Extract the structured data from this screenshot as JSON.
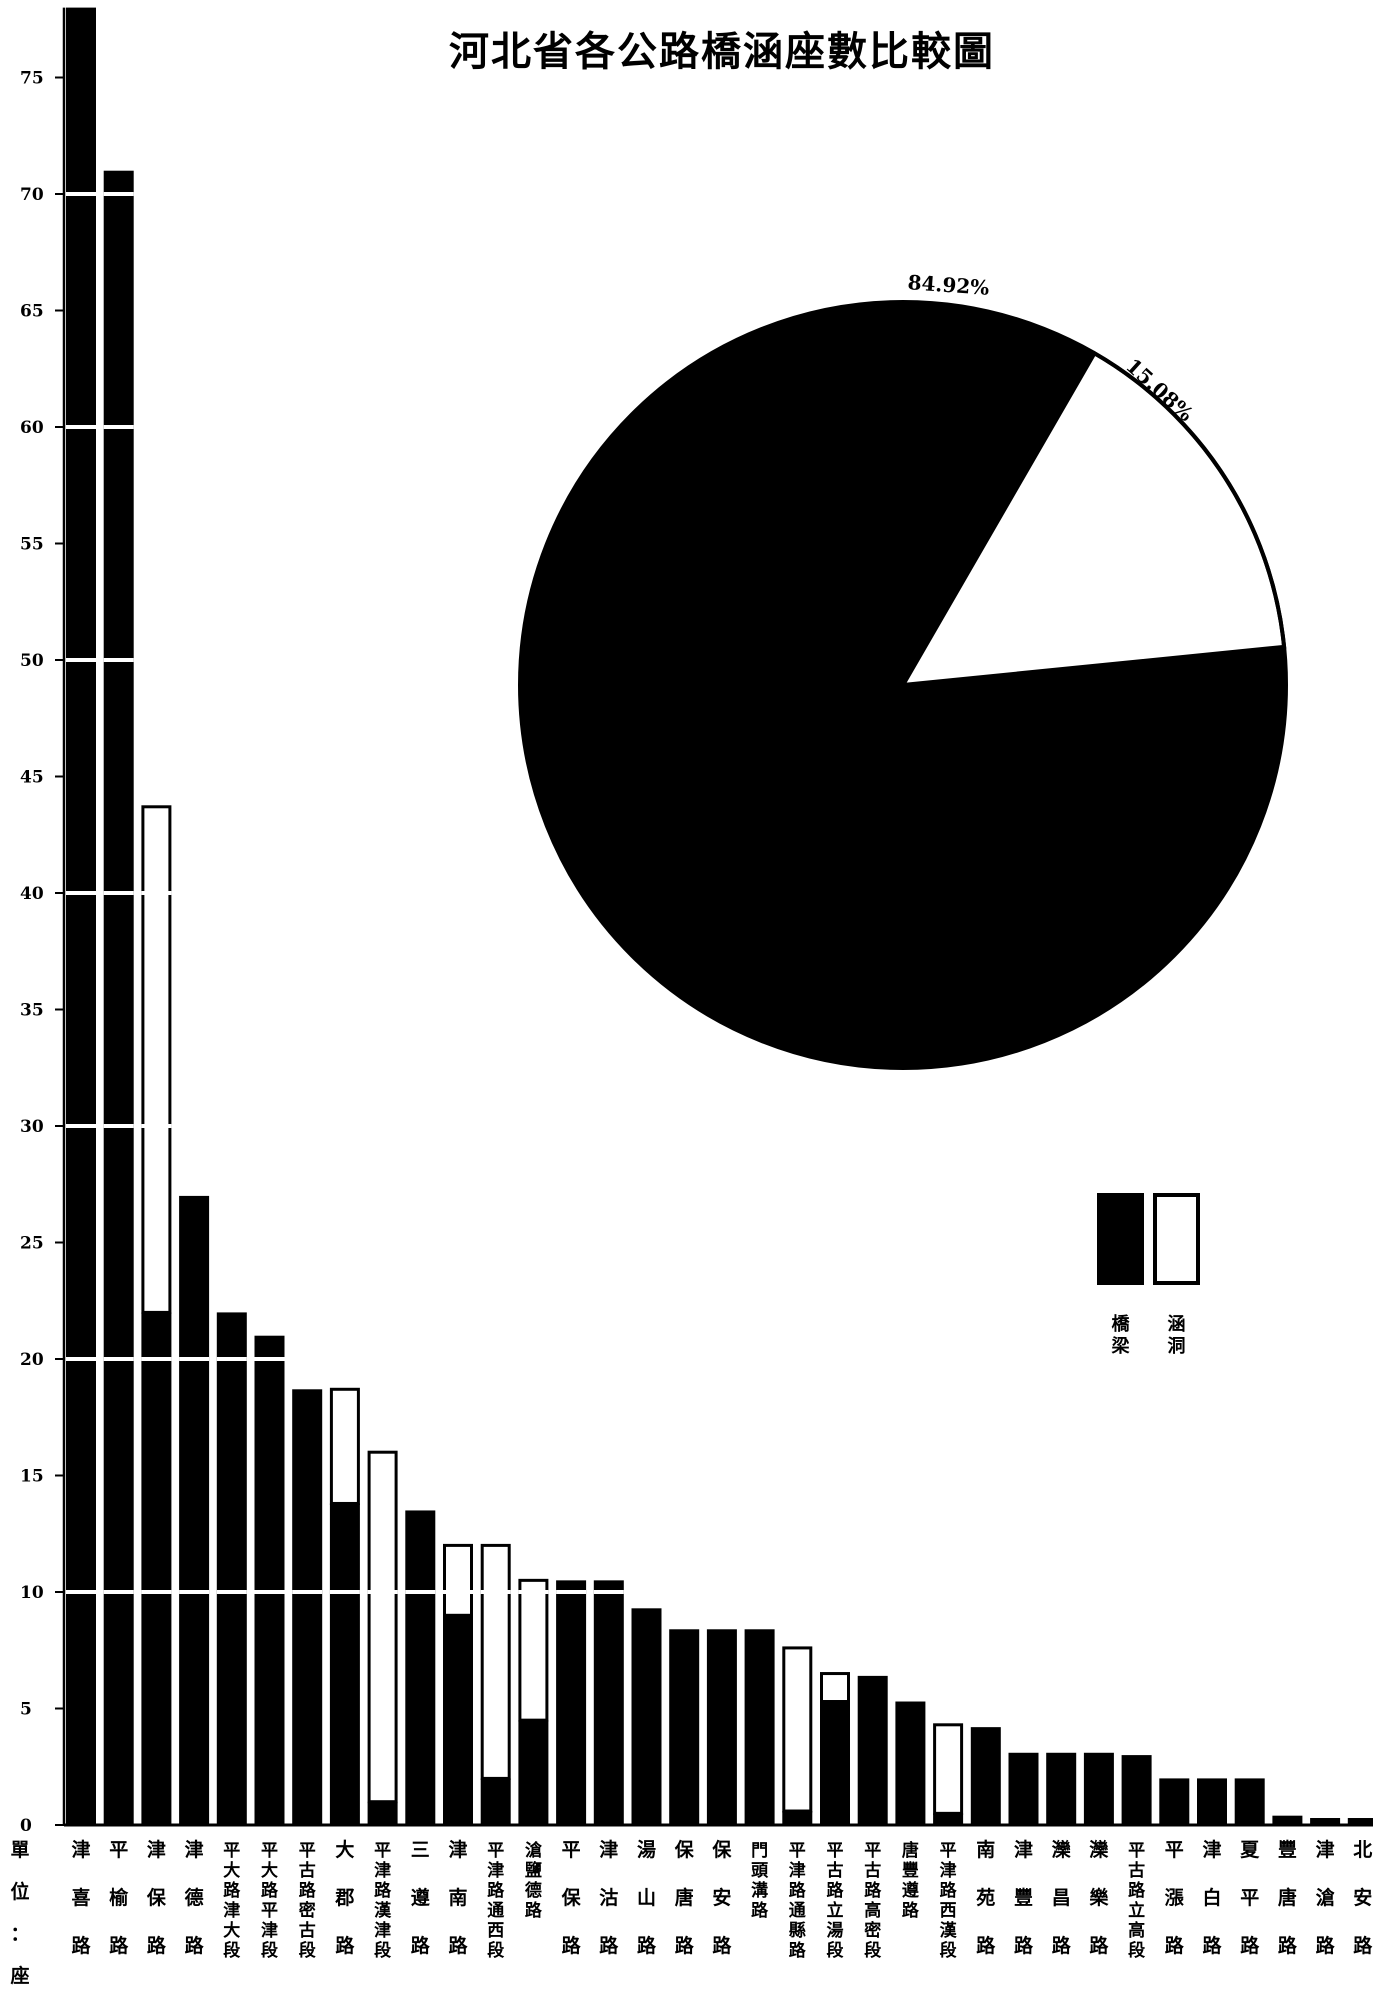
{
  "chart_data": [
    {
      "type": "bar",
      "stacked": true,
      "title": "河北省各公路橋涵座數比較圖",
      "unit_label": "單位：座",
      "ylim": [
        0,
        78
      ],
      "yticks": [
        0,
        5,
        10,
        15,
        20,
        25,
        30,
        35,
        40,
        45,
        50,
        55,
        60,
        65,
        70,
        75
      ],
      "categories": [
        "津喜路",
        "平榆路",
        "津保路",
        "津德路",
        "平大路津大段",
        "平大路平津段",
        "平古路密古段",
        "大郡路",
        "平津路漢津段",
        "三遵路",
        "津南路",
        "平津路通西段",
        "滄鹽德路",
        "平保路",
        "津沽路",
        "湯山路",
        "保唐路",
        "保安路",
        "門頭溝路",
        "平津路通縣路",
        "平古路立湯段",
        "平古路高密段",
        "唐豐遵路",
        "平津路西漢段",
        "南苑路",
        "津豐路",
        "灤昌路",
        "灤樂路",
        "平古路立高段",
        "平漲路",
        "津白路",
        "夏平路",
        "豐唐路",
        "津滄路",
        "北安路"
      ],
      "series": [
        {
          "name": "橋梁",
          "color": "#000000",
          "values": [
            78,
            71,
            22,
            27,
            22,
            21,
            18.7,
            13.8,
            1,
            13.5,
            9,
            2,
            4.5,
            10.5,
            10.5,
            9.3,
            8.4,
            8.4,
            8.4,
            0.6,
            5.3,
            6.4,
            5.3,
            0.5,
            4.2,
            3.1,
            3.1,
            3.1,
            3,
            2,
            2,
            2,
            0.4,
            0.3,
            0.3
          ]
        },
        {
          "name": "涵洞",
          "color": "#ffffff",
          "values": [
            0,
            0,
            21.7,
            0,
            0,
            0,
            0,
            4.9,
            15,
            0,
            3,
            10,
            6,
            0,
            0,
            0,
            0,
            0,
            0,
            7,
            1.2,
            0,
            0,
            3.8,
            0,
            0,
            0,
            0,
            0,
            0,
            0,
            0,
            0,
            0,
            0
          ]
        }
      ],
      "grid": false,
      "legend_position": "right"
    },
    {
      "type": "pie",
      "slices": [
        {
          "label": "84.92%",
          "value": 84.92,
          "color": "#000000"
        },
        {
          "label": "15.08%",
          "value": 15.08,
          "color": "#ffffff"
        }
      ]
    }
  ]
}
